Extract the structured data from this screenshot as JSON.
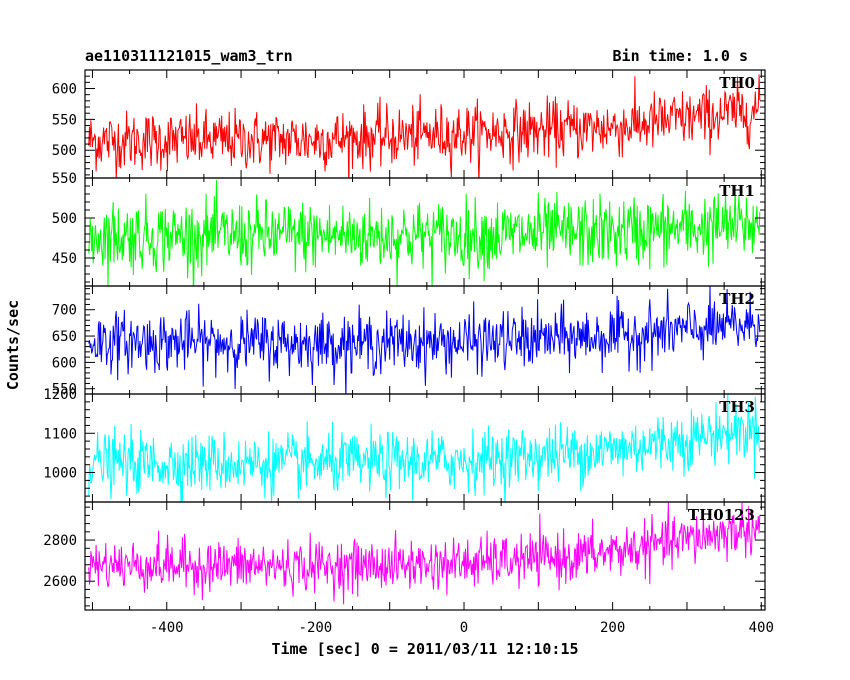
{
  "chart_data": {
    "type": "line",
    "title": "ae110311121015_wam3_trn",
    "subtitle": "Bin time: 1.0 s",
    "xlabel": "Time [sec] 0 = 2011/03/11 12:10:15",
    "ylabel": "Counts/sec",
    "xlim": [
      -510,
      405
    ],
    "x_ticks": [
      -400,
      -200,
      0,
      200,
      400
    ],
    "grid": false,
    "bin_time_s": 1.0,
    "x_start": -505,
    "x_end": 398,
    "panels": [
      {
        "name": "TH0",
        "color": "#ff0000",
        "ylim": [
          455,
          630
        ],
        "y_ticks": [
          500,
          550,
          600
        ],
        "trend": [
          [
            -505,
            515
          ],
          [
            -200,
            517
          ],
          [
            0,
            527
          ],
          [
            200,
            537
          ],
          [
            398,
            565
          ]
        ],
        "noise_sd": 24
      },
      {
        "name": "TH1",
        "color": "#00ff00",
        "ylim": [
          415,
          550
        ],
        "y_ticks": [
          450,
          500,
          550
        ],
        "trend": [
          [
            -505,
            478
          ],
          [
            0,
            478
          ],
          [
            200,
            482
          ],
          [
            398,
            492
          ]
        ],
        "noise_sd": 22
      },
      {
        "name": "TH2",
        "color": "#0000ff",
        "ylim": [
          540,
          745
        ],
        "y_ticks": [
          550,
          600,
          650,
          700
        ],
        "trend": [
          [
            -505,
            640
          ],
          [
            -200,
            636
          ],
          [
            0,
            638
          ],
          [
            200,
            650
          ],
          [
            398,
            672
          ]
        ],
        "noise_sd": 28
      },
      {
        "name": "TH3",
        "color": "#00ffff",
        "ylim": [
          925,
          1200
        ],
        "y_ticks": [
          1000,
          1100,
          1200
        ],
        "trend": [
          [
            -505,
            1025
          ],
          [
            -200,
            1022
          ],
          [
            0,
            1030
          ],
          [
            200,
            1058
          ],
          [
            398,
            1115
          ]
        ],
        "noise_sd": 38
      },
      {
        "name": "TH0123",
        "color": "#ff00ff",
        "ylim": [
          2460,
          2985
        ],
        "y_ticks": [
          2600,
          2800
        ],
        "trend": [
          [
            -505,
            2680
          ],
          [
            -200,
            2672
          ],
          [
            0,
            2685
          ],
          [
            150,
            2718
          ],
          [
            250,
            2770
          ],
          [
            398,
            2865
          ]
        ],
        "noise_sd": 62
      }
    ]
  }
}
